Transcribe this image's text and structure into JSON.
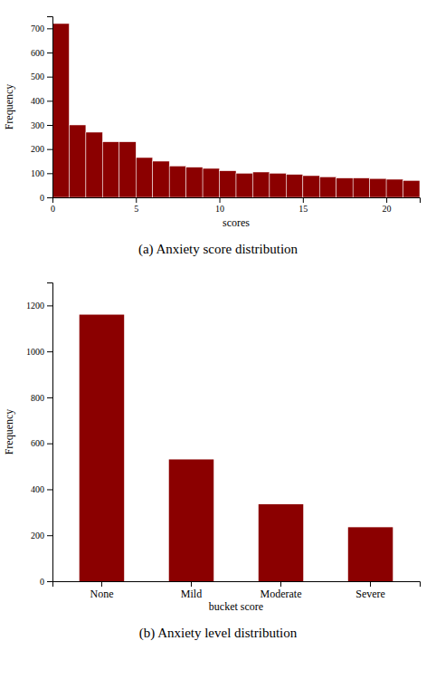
{
  "chart_data": [
    {
      "type": "histogram",
      "title": "(a) Anxiety score distribution",
      "bins": [
        0,
        1,
        2,
        3,
        4,
        5,
        6,
        7,
        8,
        9,
        10,
        11,
        12,
        13,
        14,
        15,
        16,
        17,
        18,
        19,
        20,
        21,
        22
      ],
      "values": [
        720,
        300,
        270,
        230,
        230,
        165,
        150,
        130,
        125,
        120,
        110,
        100,
        105,
        100,
        95,
        90,
        85,
        80,
        80,
        78,
        75,
        70
      ],
      "color": "#8B0000",
      "xlabel": "scores",
      "ylabel": "Frequency",
      "xlim": [
        0,
        22
      ],
      "xticks": [
        0,
        5,
        10,
        15,
        20
      ],
      "ylim": [
        0,
        750
      ],
      "yticks": [
        0,
        100,
        200,
        300,
        400,
        500,
        600,
        700
      ],
      "grid": false
    },
    {
      "type": "bar",
      "title": "(b) Anxiety level distribution",
      "categories": [
        "None",
        "Mild",
        "Moderate",
        "Severe"
      ],
      "values": [
        1160,
        530,
        335,
        235
      ],
      "color": "#8B0000",
      "xlabel": "bucket score",
      "ylabel": "Frequency",
      "ylim": [
        0,
        1300
      ],
      "yticks": [
        0,
        200,
        400,
        600,
        800,
        1000,
        1200
      ],
      "grid": false
    }
  ]
}
